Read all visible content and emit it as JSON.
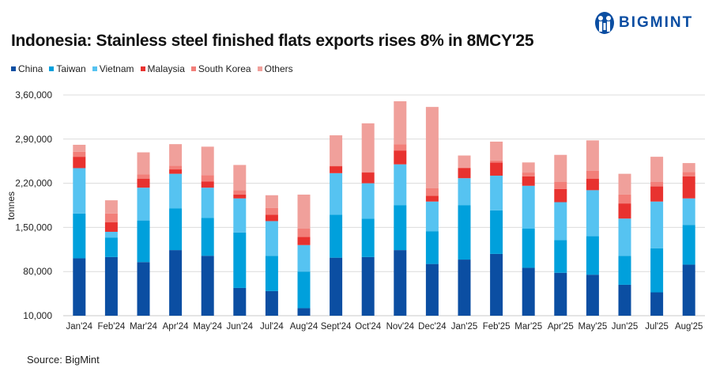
{
  "header": {
    "title": "Indonesia: Stainless steel finished flats exports rises 8% in 8MCY'25",
    "logo_text": "BIGMINT"
  },
  "source": "Source: BigMint",
  "chart_data": {
    "type": "bar",
    "stacked": true,
    "title": "Indonesia: Stainless steel finished flats exports rises 8% in 8MCY'25",
    "xlabel": "",
    "ylabel": "tonnes",
    "ylim": [
      10000,
      360000
    ],
    "yticks": [
      10000,
      80000,
      150000,
      220000,
      290000,
      360000
    ],
    "ytick_labels": [
      "10,000",
      "80,000",
      "1,50,000",
      "2,20,000",
      "2,90,000",
      "3,60,000"
    ],
    "grid": true,
    "legend_position": "top-left",
    "categories": [
      "Jan'24",
      "Feb'24",
      "Mar'24",
      "Apr'24",
      "May'24",
      "Jun'24",
      "Jul'24",
      "Aug'24",
      "Sept'24",
      "Oct'24",
      "Nov'24",
      "Dec'24",
      "Jan'25",
      "Feb'25",
      "Mar'25",
      "Apr'25",
      "May'25",
      "Jun'25",
      "Jul'25",
      "Aug'25"
    ],
    "series": [
      {
        "name": "China",
        "color": "#0b4ea2",
        "values": [
          101000,
          103000,
          95000,
          114000,
          105000,
          54000,
          49000,
          22000,
          102000,
          103000,
          114000,
          92000,
          99000,
          108000,
          86000,
          78000,
          75000,
          59000,
          47000,
          91000
        ]
      },
      {
        "name": "Taiwan",
        "color": "#00a0dc",
        "values": [
          71000,
          31000,
          66000,
          66000,
          60000,
          88000,
          56000,
          58000,
          68000,
          61000,
          71000,
          52000,
          86000,
          69000,
          62000,
          52000,
          61000,
          46000,
          70000,
          63000
        ]
      },
      {
        "name": "Vietnam",
        "color": "#56c3f1",
        "values": [
          72000,
          9000,
          52000,
          55000,
          48000,
          54000,
          55000,
          42000,
          66000,
          56000,
          65000,
          47000,
          43000,
          55000,
          68000,
          60000,
          73000,
          59000,
          74000,
          42000
        ]
      },
      {
        "name": "Malaysia",
        "color": "#e8322f",
        "values": [
          18000,
          15000,
          14000,
          7000,
          10000,
          6000,
          10000,
          13000,
          11000,
          17000,
          22000,
          9000,
          16000,
          21000,
          15000,
          21000,
          18000,
          24000,
          24000,
          35000
        ]
      },
      {
        "name": "South Korea",
        "color": "#f27f79",
        "values": [
          8000,
          14000,
          7000,
          6000,
          10000,
          7000,
          11000,
          13000,
          1000,
          1000,
          10000,
          12000,
          1000,
          3000,
          6000,
          11000,
          13000,
          14000,
          7000,
          7000
        ]
      },
      {
        "name": "Others",
        "color": "#f0a09b",
        "values": [
          11000,
          21000,
          35000,
          34000,
          45000,
          40000,
          20000,
          54000,
          48000,
          77000,
          68000,
          129000,
          19000,
          30000,
          16000,
          43000,
          48000,
          33000,
          40000,
          14000
        ]
      }
    ]
  }
}
